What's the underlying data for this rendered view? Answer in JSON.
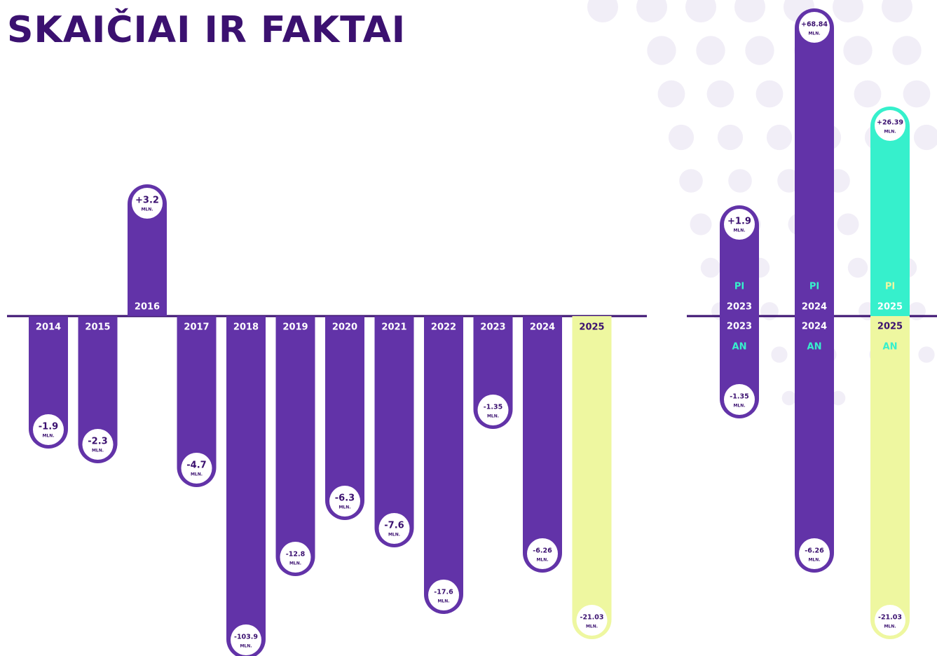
{
  "title": "SKAIČIAI IR FAKTAI",
  "unit": "MLN.",
  "history": [
    {
      "year": "2014",
      "value": "-1.9"
    },
    {
      "year": "2015",
      "value": "-2.3"
    },
    {
      "year": "2016",
      "value": "+3.2"
    },
    {
      "year": "2017",
      "value": "-4.7"
    },
    {
      "year": "2018",
      "value": "-103.9"
    },
    {
      "year": "2019",
      "value": "-12.8"
    },
    {
      "year": "2020",
      "value": "-6.3"
    },
    {
      "year": "2021",
      "value": "-7.6"
    },
    {
      "year": "2022",
      "value": "-17.6"
    },
    {
      "year": "2023",
      "value": "-1.35"
    },
    {
      "year": "2024",
      "value": "-6.26"
    },
    {
      "year": "2025",
      "value": "-21.03"
    }
  ],
  "plan_labels": {
    "pi": "PI",
    "an": "AN"
  },
  "comparison": [
    {
      "year": "2023",
      "pi": "+1.9",
      "an": "-1.35"
    },
    {
      "year": "2024",
      "pi": "+68.84",
      "an": "-6.26"
    },
    {
      "year": "2025",
      "pi": "+26.39",
      "an": "-21.03"
    }
  ]
}
